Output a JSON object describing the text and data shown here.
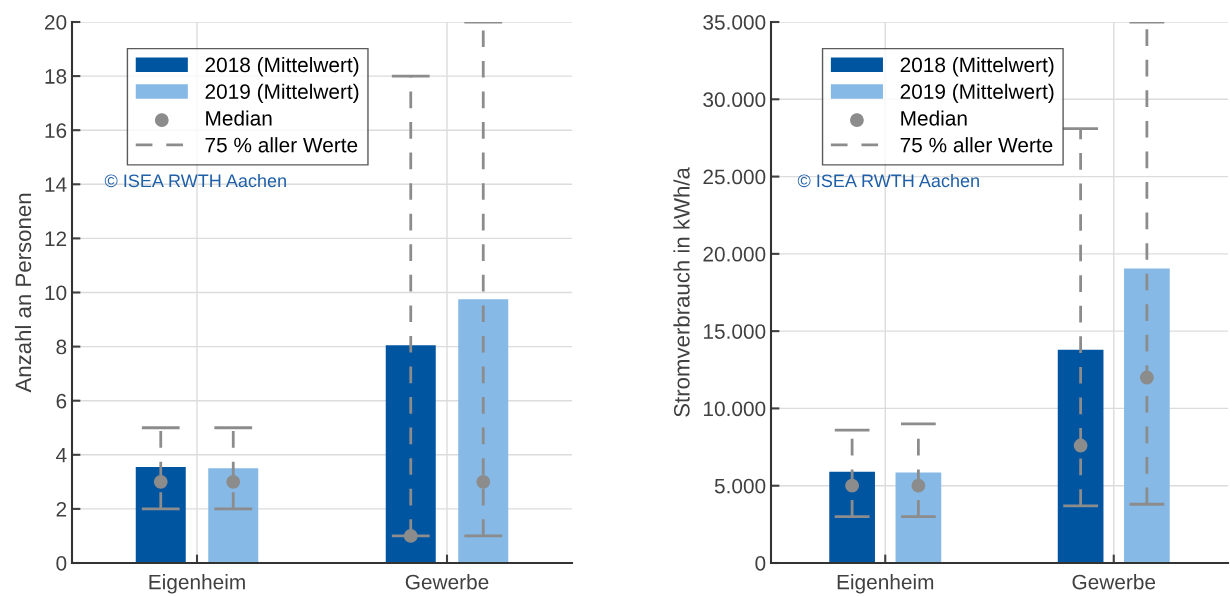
{
  "chart_data": [
    {
      "type": "bar",
      "ylabel": "Anzahl an Personen",
      "categories": [
        "Eigenheim",
        "Gewerbe"
      ],
      "ylim": [
        0,
        20
      ],
      "yticks": [
        0,
        2,
        4,
        6,
        8,
        10,
        12,
        14,
        16,
        18,
        20
      ],
      "grid": true,
      "legend": "top left",
      "annotations": [
        "© ISEA RWTH Aachen"
      ],
      "series": [
        {
          "name": "2018 (Mittelwert)",
          "color": "#0055a0",
          "values": [
            3.55,
            8.05
          ]
        },
        {
          "name": "2019 (Mittelwert)",
          "color": "#86b9e5",
          "values": [
            3.5,
            9.75
          ]
        },
        {
          "name": "Median",
          "type": "scatter",
          "marker": "circle",
          "color": "#8c8c8c",
          "values": [
            3,
            1
          ],
          "errors": [
            [
              2,
              5
            ],
            [
              1,
              18
            ]
          ]
        },
        {
          "type": "scatter",
          "marker": "circle",
          "color": "#8c8c8c",
          "values": [
            3,
            3
          ],
          "errors": [
            [
              2,
              5
            ],
            [
              1,
              20
            ]
          ]
        },
        {
          "name": "75 % aller Werte",
          "type": "line",
          "line_style": "dashed",
          "color": "#8c8c8c",
          "values": [
            null,
            null
          ]
        }
      ]
    },
    {
      "type": "bar",
      "ylabel": "Stromverbrauch in kWh/a",
      "categories": [
        "Eigenheim",
        "Gewerbe"
      ],
      "ylim": [
        0,
        35000
      ],
      "yticks": [
        0,
        {
          "value": 5000,
          "label": "5.000"
        },
        {
          "value": 10000,
          "label": "10.000"
        },
        {
          "value": 15000,
          "label": "15.000"
        },
        {
          "value": 20000,
          "label": "20.000"
        },
        {
          "value": 25000,
          "label": "25.000"
        },
        {
          "value": 30000,
          "label": "30.000"
        },
        {
          "value": 35000,
          "label": "35.000"
        }
      ],
      "grid": true,
      "legend": "top left",
      "annotations": [
        "© ISEA RWTH Aachen"
      ],
      "series": [
        {
          "name": "2018 (Mittelwert)",
          "color": "#0055a0",
          "values": [
            5900,
            13800
          ]
        },
        {
          "name": "2019 (Mittelwert)",
          "color": "#86b9e5",
          "values": [
            5850,
            19050
          ]
        },
        {
          "name": "Median",
          "type": "scatter",
          "marker": "circle",
          "color": "#8c8c8c",
          "values": [
            5000,
            7600
          ],
          "errors": [
            [
              3000,
              8600
            ],
            [
              3700,
              28100
            ]
          ]
        },
        {
          "type": "scatter",
          "marker": "circle",
          "color": "#8c8c8c",
          "values": [
            5000,
            12000
          ],
          "errors": [
            [
              3000,
              9000
            ],
            [
              3800,
              35000
            ]
          ]
        },
        {
          "name": "75 % aller Werte",
          "type": "line",
          "line_style": "dashed",
          "color": "#8c8c8c",
          "values": [
            null,
            null
          ]
        }
      ]
    }
  ]
}
